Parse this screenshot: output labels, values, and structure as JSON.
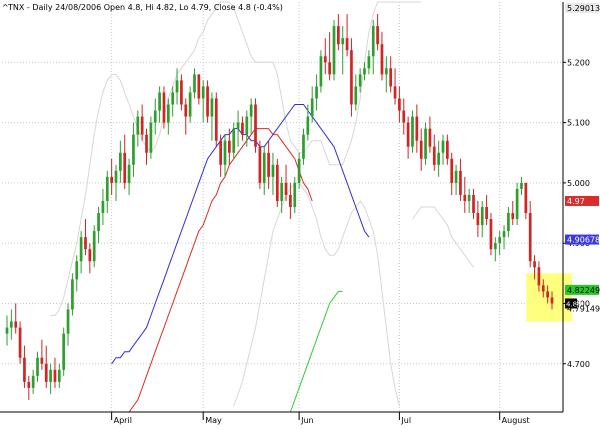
{
  "header": {
    "caret": "^",
    "text": "TNX - Daily 24/08/2006 Open 4.8, Hi 4.82, Lo 4.79, Close 4.8 (-0.4%)"
  },
  "chart_data": {
    "type": "candlestick",
    "title": "^TNX - Daily 24/08/2006 Open 4.8, Hi 4.82, Lo 4.79, Close 4.8 (-0.4%)",
    "ylim": [
      4.62,
      5.3
    ],
    "y_ticks": [
      4.7,
      4.8,
      4.9,
      5.0,
      5.1,
      5.2
    ],
    "y_tick_labels": [
      "4.700",
      "4.800",
      "4.900",
      "5.000",
      "5.100",
      "5.200"
    ],
    "x_ticks": [
      {
        "label": "April",
        "bar": 24
      },
      {
        "label": "May",
        "bar": 45
      },
      {
        "label": "Jun",
        "bar": 67
      },
      {
        "label": "Jul",
        "bar": 90
      },
      {
        "label": "August",
        "bar": 113
      }
    ],
    "ohlc": [
      [
        4.75,
        4.78,
        4.73,
        4.76
      ],
      [
        4.76,
        4.79,
        4.74,
        4.77
      ],
      [
        4.77,
        4.8,
        4.75,
        4.76
      ],
      [
        4.76,
        4.77,
        4.7,
        4.71
      ],
      [
        4.71,
        4.73,
        4.66,
        4.67
      ],
      [
        4.67,
        4.68,
        4.64,
        4.66
      ],
      [
        4.66,
        4.69,
        4.65,
        4.68
      ],
      [
        4.68,
        4.72,
        4.67,
        4.71
      ],
      [
        4.71,
        4.74,
        4.69,
        4.7
      ],
      [
        4.7,
        4.73,
        4.66,
        4.67
      ],
      [
        4.67,
        4.7,
        4.65,
        4.69
      ],
      [
        4.69,
        4.71,
        4.66,
        4.67
      ],
      [
        4.67,
        4.7,
        4.66,
        4.69
      ],
      [
        4.69,
        4.76,
        4.68,
        4.75
      ],
      [
        4.75,
        4.8,
        4.73,
        4.79
      ],
      [
        4.79,
        4.85,
        4.78,
        4.84
      ],
      [
        4.84,
        4.88,
        4.82,
        4.87
      ],
      [
        4.87,
        4.92,
        4.85,
        4.91
      ],
      [
        4.91,
        4.94,
        4.88,
        4.89
      ],
      [
        4.89,
        4.9,
        4.85,
        4.87
      ],
      [
        4.87,
        4.93,
        4.86,
        4.92
      ],
      [
        4.92,
        4.96,
        4.9,
        4.95
      ],
      [
        4.95,
        4.99,
        4.93,
        4.97
      ],
      [
        4.97,
        5.02,
        4.95,
        5.01
      ],
      [
        5.01,
        5.04,
        4.98,
        5.0
      ],
      [
        5.0,
        5.03,
        4.97,
        5.02
      ],
      [
        5.02,
        5.07,
        5.0,
        5.05
      ],
      [
        5.05,
        5.08,
        4.99,
        5.0
      ],
      [
        5.0,
        5.04,
        4.98,
        5.03
      ],
      [
        5.03,
        5.1,
        5.01,
        5.08
      ],
      [
        5.08,
        5.12,
        5.06,
        5.11
      ],
      [
        5.11,
        5.13,
        5.07,
        5.08
      ],
      [
        5.08,
        5.09,
        5.03,
        5.05
      ],
      [
        5.05,
        5.11,
        5.04,
        5.1
      ],
      [
        5.1,
        5.14,
        5.08,
        5.12
      ],
      [
        5.12,
        5.16,
        5.1,
        5.15
      ],
      [
        5.15,
        5.16,
        5.09,
        5.1
      ],
      [
        5.1,
        5.14,
        5.08,
        5.13
      ],
      [
        5.13,
        5.16,
        5.11,
        5.15
      ],
      [
        5.15,
        5.19,
        5.13,
        5.17
      ],
      [
        5.17,
        5.18,
        5.12,
        5.13
      ],
      [
        5.13,
        5.14,
        5.08,
        5.11
      ],
      [
        5.11,
        5.16,
        5.1,
        5.15
      ],
      [
        5.15,
        5.19,
        5.14,
        5.18
      ],
      [
        5.18,
        5.18,
        5.13,
        5.14
      ],
      [
        5.14,
        5.17,
        5.1,
        5.16
      ],
      [
        5.16,
        5.17,
        5.1,
        5.11
      ],
      [
        5.11,
        5.15,
        5.07,
        5.14
      ],
      [
        5.14,
        5.15,
        5.06,
        5.07
      ],
      [
        5.07,
        5.08,
        5.01,
        5.03
      ],
      [
        5.03,
        5.08,
        5.01,
        5.07
      ],
      [
        5.07,
        5.09,
        5.03,
        5.05
      ],
      [
        5.05,
        5.1,
        5.04,
        5.09
      ],
      [
        5.09,
        5.12,
        5.06,
        5.1
      ],
      [
        5.1,
        5.11,
        5.07,
        5.08
      ],
      [
        5.08,
        5.12,
        5.06,
        5.11
      ],
      [
        5.11,
        5.14,
        5.08,
        5.13
      ],
      [
        5.13,
        5.14,
        5.05,
        5.06
      ],
      [
        5.06,
        5.07,
        4.99,
        5.0
      ],
      [
        5.0,
        5.06,
        4.98,
        5.05
      ],
      [
        5.05,
        5.07,
        4.99,
        5.01
      ],
      [
        5.01,
        5.05,
        4.98,
        5.03
      ],
      [
        5.03,
        5.04,
        4.96,
        4.97
      ],
      [
        4.97,
        5.01,
        4.95,
        5.0
      ],
      [
        5.0,
        5.03,
        4.97,
        4.98
      ],
      [
        4.98,
        5.0,
        4.94,
        4.96
      ],
      [
        4.96,
        5.01,
        4.95,
        5.0
      ],
      [
        5.0,
        5.05,
        4.99,
        5.04
      ],
      [
        5.04,
        5.09,
        5.03,
        5.08
      ],
      [
        5.08,
        5.13,
        5.07,
        5.11
      ],
      [
        5.11,
        5.16,
        5.1,
        5.14
      ],
      [
        5.14,
        5.18,
        5.12,
        5.16
      ],
      [
        5.16,
        5.22,
        5.15,
        5.21
      ],
      [
        5.21,
        5.24,
        5.18,
        5.2
      ],
      [
        5.2,
        5.25,
        5.17,
        5.18
      ],
      [
        5.18,
        5.27,
        5.17,
        5.26
      ],
      [
        5.26,
        5.28,
        5.22,
        5.23
      ],
      [
        5.23,
        5.26,
        5.18,
        5.24
      ],
      [
        5.24,
        5.28,
        5.21,
        5.22
      ],
      [
        5.22,
        5.24,
        5.11,
        5.13
      ],
      [
        5.13,
        5.18,
        5.12,
        5.16
      ],
      [
        5.16,
        5.19,
        5.15,
        5.18
      ],
      [
        5.18,
        5.2,
        5.17,
        5.19
      ],
      [
        5.19,
        5.22,
        5.18,
        5.21
      ],
      [
        5.21,
        5.27,
        5.18,
        5.26
      ],
      [
        5.26,
        5.28,
        5.22,
        5.23
      ],
      [
        5.23,
        5.25,
        5.17,
        5.18
      ],
      [
        5.18,
        5.21,
        5.15,
        5.19
      ],
      [
        5.19,
        5.21,
        5.15,
        5.16
      ],
      [
        5.16,
        5.19,
        5.13,
        5.14
      ],
      [
        5.14,
        5.16,
        5.1,
        5.12
      ],
      [
        5.12,
        5.14,
        5.08,
        5.1
      ],
      [
        5.1,
        5.11,
        5.04,
        5.06
      ],
      [
        5.06,
        5.12,
        5.05,
        5.11
      ],
      [
        5.11,
        5.13,
        5.05,
        5.07
      ],
      [
        5.07,
        5.09,
        5.02,
        5.04
      ],
      [
        5.04,
        5.1,
        5.03,
        5.09
      ],
      [
        5.09,
        5.11,
        5.05,
        5.06
      ],
      [
        5.06,
        5.08,
        5.02,
        5.03
      ],
      [
        5.03,
        5.07,
        5.01,
        5.05
      ],
      [
        5.05,
        5.08,
        5.03,
        5.07
      ],
      [
        5.07,
        5.08,
        5.03,
        5.04
      ],
      [
        5.04,
        5.05,
        4.98,
        5.0
      ],
      [
        5.0,
        5.03,
        4.98,
        5.02
      ],
      [
        5.02,
        5.04,
        4.97,
        4.98
      ],
      [
        4.98,
        5.01,
        4.95,
        4.97
      ],
      [
        4.97,
        4.99,
        4.95,
        4.98
      ],
      [
        4.98,
        4.99,
        4.94,
        4.95
      ],
      [
        4.95,
        4.97,
        4.91,
        4.93
      ],
      [
        4.93,
        4.97,
        4.91,
        4.96
      ],
      [
        4.96,
        4.98,
        4.93,
        4.94
      ],
      [
        4.94,
        4.95,
        4.88,
        4.89
      ],
      [
        4.89,
        4.91,
        4.87,
        4.9
      ],
      [
        4.9,
        4.92,
        4.88,
        4.91
      ],
      [
        4.91,
        4.93,
        4.89,
        4.92
      ],
      [
        4.92,
        4.96,
        4.91,
        4.95
      ],
      [
        4.95,
        4.97,
        4.93,
        4.94
      ],
      [
        4.94,
        5.0,
        4.93,
        4.99
      ],
      [
        4.99,
        5.01,
        4.98,
        5.0
      ],
      [
        5.0,
        5.0,
        4.94,
        4.95
      ],
      [
        4.95,
        4.97,
        4.86,
        4.87
      ],
      [
        4.87,
        4.88,
        4.84,
        4.86
      ],
      [
        4.86,
        4.87,
        4.82,
        4.83
      ],
      [
        4.83,
        4.84,
        4.81,
        4.82
      ],
      [
        4.82,
        4.83,
        4.8,
        4.81
      ],
      [
        4.81,
        4.82,
        4.79,
        4.8
      ]
    ],
    "series": [
      {
        "values": [
          4.7,
          4.71,
          4.71,
          4.72,
          4.72,
          4.73,
          4.74,
          4.75,
          4.76,
          4.78,
          4.8,
          4.82,
          4.84,
          4.86,
          4.88,
          4.9,
          4.92,
          4.94,
          4.96,
          4.98,
          5.0,
          5.02,
          5.04,
          5.05,
          5.06,
          5.07,
          5.08,
          5.08,
          5.09,
          5.09,
          5.08,
          5.08,
          5.07,
          5.07,
          5.06,
          5.06,
          5.07,
          5.08,
          5.09,
          5.1,
          5.11,
          5.12,
          5.13,
          5.13,
          5.13,
          5.12,
          5.11,
          5.1,
          5.09,
          5.08,
          5.07,
          5.06,
          5.04,
          5.02,
          5.0,
          4.98,
          4.96,
          4.94,
          4.92,
          4.91
        ],
        "bar_start": 24,
        "color": "#2f2fd6",
        "value_label": "4.90678",
        "label_bg": "#3b3bdd",
        "label_color": "#ffffff"
      },
      {
        "values": [
          4.62,
          4.63,
          4.64,
          4.66,
          4.68,
          4.7,
          4.72,
          4.74,
          4.76,
          4.78,
          4.8,
          4.82,
          4.84,
          4.86,
          4.88,
          4.9,
          4.92,
          4.93,
          4.95,
          4.97,
          4.98,
          5.0,
          5.01,
          5.03,
          5.04,
          5.05,
          5.06,
          5.07,
          5.08,
          5.09,
          5.09,
          5.09,
          5.09,
          5.08,
          5.08,
          5.07,
          5.06,
          5.05,
          5.04,
          5.02,
          5.0,
          4.99,
          4.97
        ],
        "bar_start": 28,
        "color": "#dd2b22",
        "value_label": "4.97",
        "label_bg": "#dd2a2a",
        "label_color": "#ffffff"
      },
      {
        "values": [
          4.62,
          4.64,
          4.66,
          4.68,
          4.7,
          4.72,
          4.74,
          4.76,
          4.78,
          4.8,
          4.81,
          4.82,
          4.82
        ],
        "bar_start": 65,
        "color": "#33cc33",
        "value_label": "4.82249",
        "label_bg": "#22cc22",
        "label_color": "#000000"
      }
    ],
    "bands": [
      {
        "values": [
          4.78,
          4.78,
          4.79,
          4.81,
          4.84,
          4.87,
          4.9,
          4.94,
          4.98,
          5.03,
          5.08,
          5.12,
          5.15,
          5.17,
          5.18,
          5.18,
          5.17,
          5.15,
          5.13,
          5.11,
          5.09,
          5.07,
          5.06,
          5.05,
          5.06,
          5.08,
          5.11,
          5.14,
          5.16,
          5.18,
          5.19,
          5.2,
          5.21,
          5.22,
          5.24,
          5.25,
          5.27,
          5.28,
          5.29,
          5.3,
          5.3,
          5.3,
          5.29,
          5.27,
          5.25,
          5.23,
          5.21,
          5.2,
          5.2,
          5.2,
          5.2,
          5.2,
          5.18,
          5.14,
          5.1,
          5.07,
          5.06,
          5.05,
          5.05,
          5.06,
          5.07,
          5.07,
          5.07,
          5.05,
          5.03,
          5.03,
          5.03,
          5.03,
          5.05,
          5.07,
          5.1,
          5.14,
          5.2,
          5.25,
          5.28,
          5.3,
          5.3,
          5.3,
          5.3,
          5.3,
          5.3,
          5.3,
          5.3,
          5.3,
          5.3,
          5.3
        ],
        "bar_start": 10,
        "color": "#d7d7d7"
      },
      {
        "values": [
          4.63,
          4.65,
          4.67,
          4.7,
          4.73,
          4.76,
          4.8,
          4.84,
          4.88,
          4.92,
          4.94,
          4.96,
          4.98,
          4.99,
          5.0,
          5.0,
          4.99,
          4.98,
          4.96,
          4.94,
          4.91,
          4.89,
          4.88,
          4.88,
          4.89,
          4.91,
          4.93,
          4.95,
          4.96,
          4.97,
          4.96,
          4.94,
          4.92,
          4.88,
          4.82,
          4.76,
          4.7,
          4.66,
          4.63
        ],
        "bar_start": 52,
        "color": "#d7d7d7"
      },
      {
        "values": [
          4.94,
          4.95,
          4.96,
          4.96,
          4.96,
          4.96,
          4.95,
          4.94,
          4.93,
          4.91,
          4.9,
          4.89,
          4.88,
          4.87,
          4.86
        ],
        "bar_start": 93,
        "color": "#d7d7d7"
      }
    ],
    "upper_band_label": "5.29013",
    "last_close_label": "4.80",
    "lower_label": "4.79149",
    "highlight": {
      "bar_from": 120,
      "bar_to": 128,
      "y_from": 4.77,
      "y_to": 4.85,
      "color": "#ffff7f"
    },
    "colors": {
      "up": "#2e9e2e",
      "down": "#d12424",
      "grid": "#c9c9c9",
      "axis": "#000000"
    }
  }
}
